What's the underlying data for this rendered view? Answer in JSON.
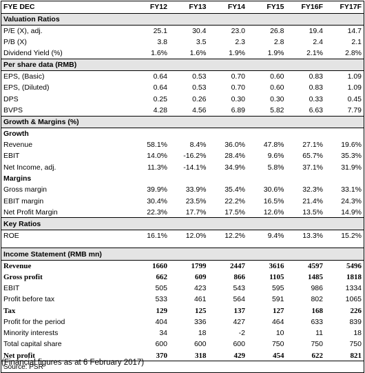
{
  "header": {
    "label": "FYE DEC",
    "years": [
      "FY12",
      "FY13",
      "FY14",
      "FY15",
      "FY16F",
      "FY17F"
    ]
  },
  "sections": {
    "valuation": "Valuation Ratios",
    "per_share": "Per share data (RMB)",
    "growth_margins": "Growth & Margins (%)",
    "growth": "Growth",
    "margins": "Margins",
    "key_ratios": "Key Ratios",
    "income": "Income Statement (RMB mn)"
  },
  "rows": {
    "pe": {
      "label": "P/E (X), adj.",
      "v": [
        "25.1",
        "30.4",
        "23.0",
        "26.8",
        "19.4",
        "14.7"
      ]
    },
    "pb": {
      "label": "P/B (X)",
      "v": [
        "3.8",
        "3.5",
        "2.3",
        "2.8",
        "2.4",
        "2.1"
      ]
    },
    "dy": {
      "label": "Dividend Yield (%)",
      "v": [
        "1.6%",
        "1.6%",
        "1.9%",
        "1.9%",
        "2.1%",
        "2.8%"
      ]
    },
    "eps_b": {
      "label": "EPS, (Basic)",
      "v": [
        "0.64",
        "0.53",
        "0.70",
        "0.60",
        "0.83",
        "1.09"
      ]
    },
    "eps_d": {
      "label": "EPS, (Diluted)",
      "v": [
        "0.64",
        "0.53",
        "0.70",
        "0.60",
        "0.83",
        "1.09"
      ]
    },
    "dps": {
      "label": "DPS",
      "v": [
        "0.25",
        "0.26",
        "0.30",
        "0.30",
        "0.33",
        "0.45"
      ]
    },
    "bvps": {
      "label": "BVPS",
      "v": [
        "4.28",
        "4.56",
        "6.89",
        "5.82",
        "6.63",
        "7.79"
      ]
    },
    "g_rev": {
      "label": "Revenue",
      "v": [
        "58.1%",
        "8.4%",
        "36.0%",
        "47.8%",
        "27.1%",
        "19.6%"
      ]
    },
    "g_ebit": {
      "label": "EBIT",
      "v": [
        "14.0%",
        "-16.2%",
        "28.4%",
        "9.6%",
        "65.7%",
        "35.3%"
      ]
    },
    "g_ni": {
      "label": "Net Income, adj.",
      "v": [
        "11.3%",
        "-14.1%",
        "34.9%",
        "5.8%",
        "37.1%",
        "31.9%"
      ]
    },
    "m_gross": {
      "label": "Gross margin",
      "v": [
        "39.9%",
        "33.9%",
        "35.4%",
        "30.6%",
        "32.3%",
        "33.1%"
      ]
    },
    "m_ebit": {
      "label": "EBIT margin",
      "v": [
        "30.4%",
        "23.5%",
        "22.2%",
        "16.5%",
        "21.4%",
        "24.3%"
      ]
    },
    "m_np": {
      "label": "Net Profit Margin",
      "v": [
        "22.3%",
        "17.7%",
        "17.5%",
        "12.6%",
        "13.5%",
        "14.9%"
      ]
    },
    "roe": {
      "label": "ROE",
      "v": [
        "16.1%",
        "12.0%",
        "12.2%",
        "9.4%",
        "13.3%",
        "15.2%"
      ]
    },
    "revenue": {
      "label": "Revenue",
      "v": [
        "1660",
        "1799",
        "2447",
        "3616",
        "4597",
        "5496"
      ]
    },
    "gp": {
      "label": "Gross profit",
      "v": [
        "662",
        "609",
        "866",
        "1105",
        "1485",
        "1818"
      ]
    },
    "ebit": {
      "label": "EBIT",
      "v": [
        "505",
        "423",
        "543",
        "595",
        "986",
        "1334"
      ]
    },
    "pbt": {
      "label": "Profit before tax",
      "v": [
        "533",
        "461",
        "564",
        "591",
        "802",
        "1065"
      ]
    },
    "tax": {
      "label": "Tax",
      "v": [
        "129",
        "125",
        "137",
        "127",
        "168",
        "226"
      ]
    },
    "pfp": {
      "label": "Profit for the period",
      "v": [
        "404",
        "336",
        "427",
        "464",
        "633",
        "839"
      ]
    },
    "mi": {
      "label": "Minority interests",
      "v": [
        "34",
        "18",
        "-2",
        "10",
        "11",
        "18"
      ]
    },
    "tcs": {
      "label": "Total capital share",
      "v": [
        "600",
        "600",
        "600",
        "750",
        "750",
        "750"
      ]
    },
    "np": {
      "label": "Net profit",
      "v": [
        "370",
        "318",
        "429",
        "454",
        "622",
        "821"
      ]
    }
  },
  "source": "Source: PSR",
  "footnote": "(Financial figures as at 6 February 2017)"
}
